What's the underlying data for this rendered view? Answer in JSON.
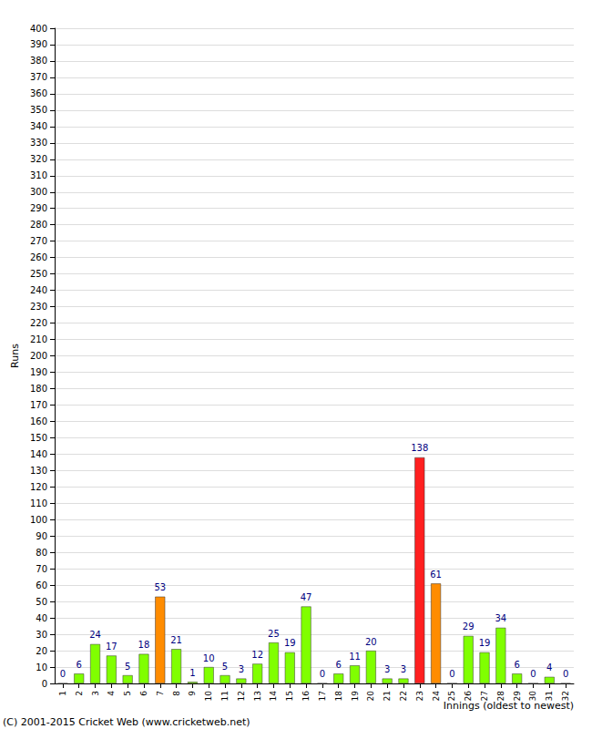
{
  "chart_data": {
    "type": "bar",
    "ylabel": "Runs",
    "xlabel": "Innings (oldest to newest)",
    "annotation": "(C) 2001-2015 Cricket Web (www.cricketweb.net)",
    "categories": [
      "1",
      "2",
      "3",
      "4",
      "5",
      "6",
      "7",
      "8",
      "9",
      "10",
      "11",
      "12",
      "13",
      "14",
      "15",
      "16",
      "17",
      "18",
      "19",
      "20",
      "21",
      "22",
      "23",
      "24",
      "25",
      "26",
      "27",
      "28",
      "29",
      "30",
      "31",
      "32"
    ],
    "values": [
      0,
      6,
      24,
      17,
      5,
      18,
      53,
      21,
      1,
      10,
      5,
      3,
      12,
      25,
      19,
      47,
      0,
      6,
      11,
      20,
      3,
      3,
      138,
      61,
      0,
      29,
      19,
      34,
      6,
      0,
      4,
      0
    ],
    "colors": [
      "#80ff00",
      "#80ff00",
      "#80ff00",
      "#80ff00",
      "#80ff00",
      "#80ff00",
      "#ff8c00",
      "#80ff00",
      "#80ff00",
      "#80ff00",
      "#80ff00",
      "#80ff00",
      "#80ff00",
      "#80ff00",
      "#80ff00",
      "#80ff00",
      "#80ff00",
      "#80ff00",
      "#80ff00",
      "#80ff00",
      "#80ff00",
      "#80ff00",
      "#ff2020",
      "#ff8c00",
      "#80ff00",
      "#80ff00",
      "#80ff00",
      "#80ff00",
      "#80ff00",
      "#80ff00",
      "#80ff00",
      "#80ff00"
    ],
    "ylim": [
      0,
      400
    ],
    "yticks": [
      0,
      10,
      20,
      30,
      40,
      50,
      60,
      70,
      80,
      90,
      100,
      110,
      120,
      130,
      140,
      150,
      160,
      170,
      180,
      190,
      200,
      210,
      220,
      230,
      240,
      250,
      260,
      270,
      280,
      290,
      300,
      310,
      320,
      330,
      340,
      350,
      360,
      370,
      380,
      390,
      400
    ],
    "grid": true,
    "data_labels": true
  }
}
